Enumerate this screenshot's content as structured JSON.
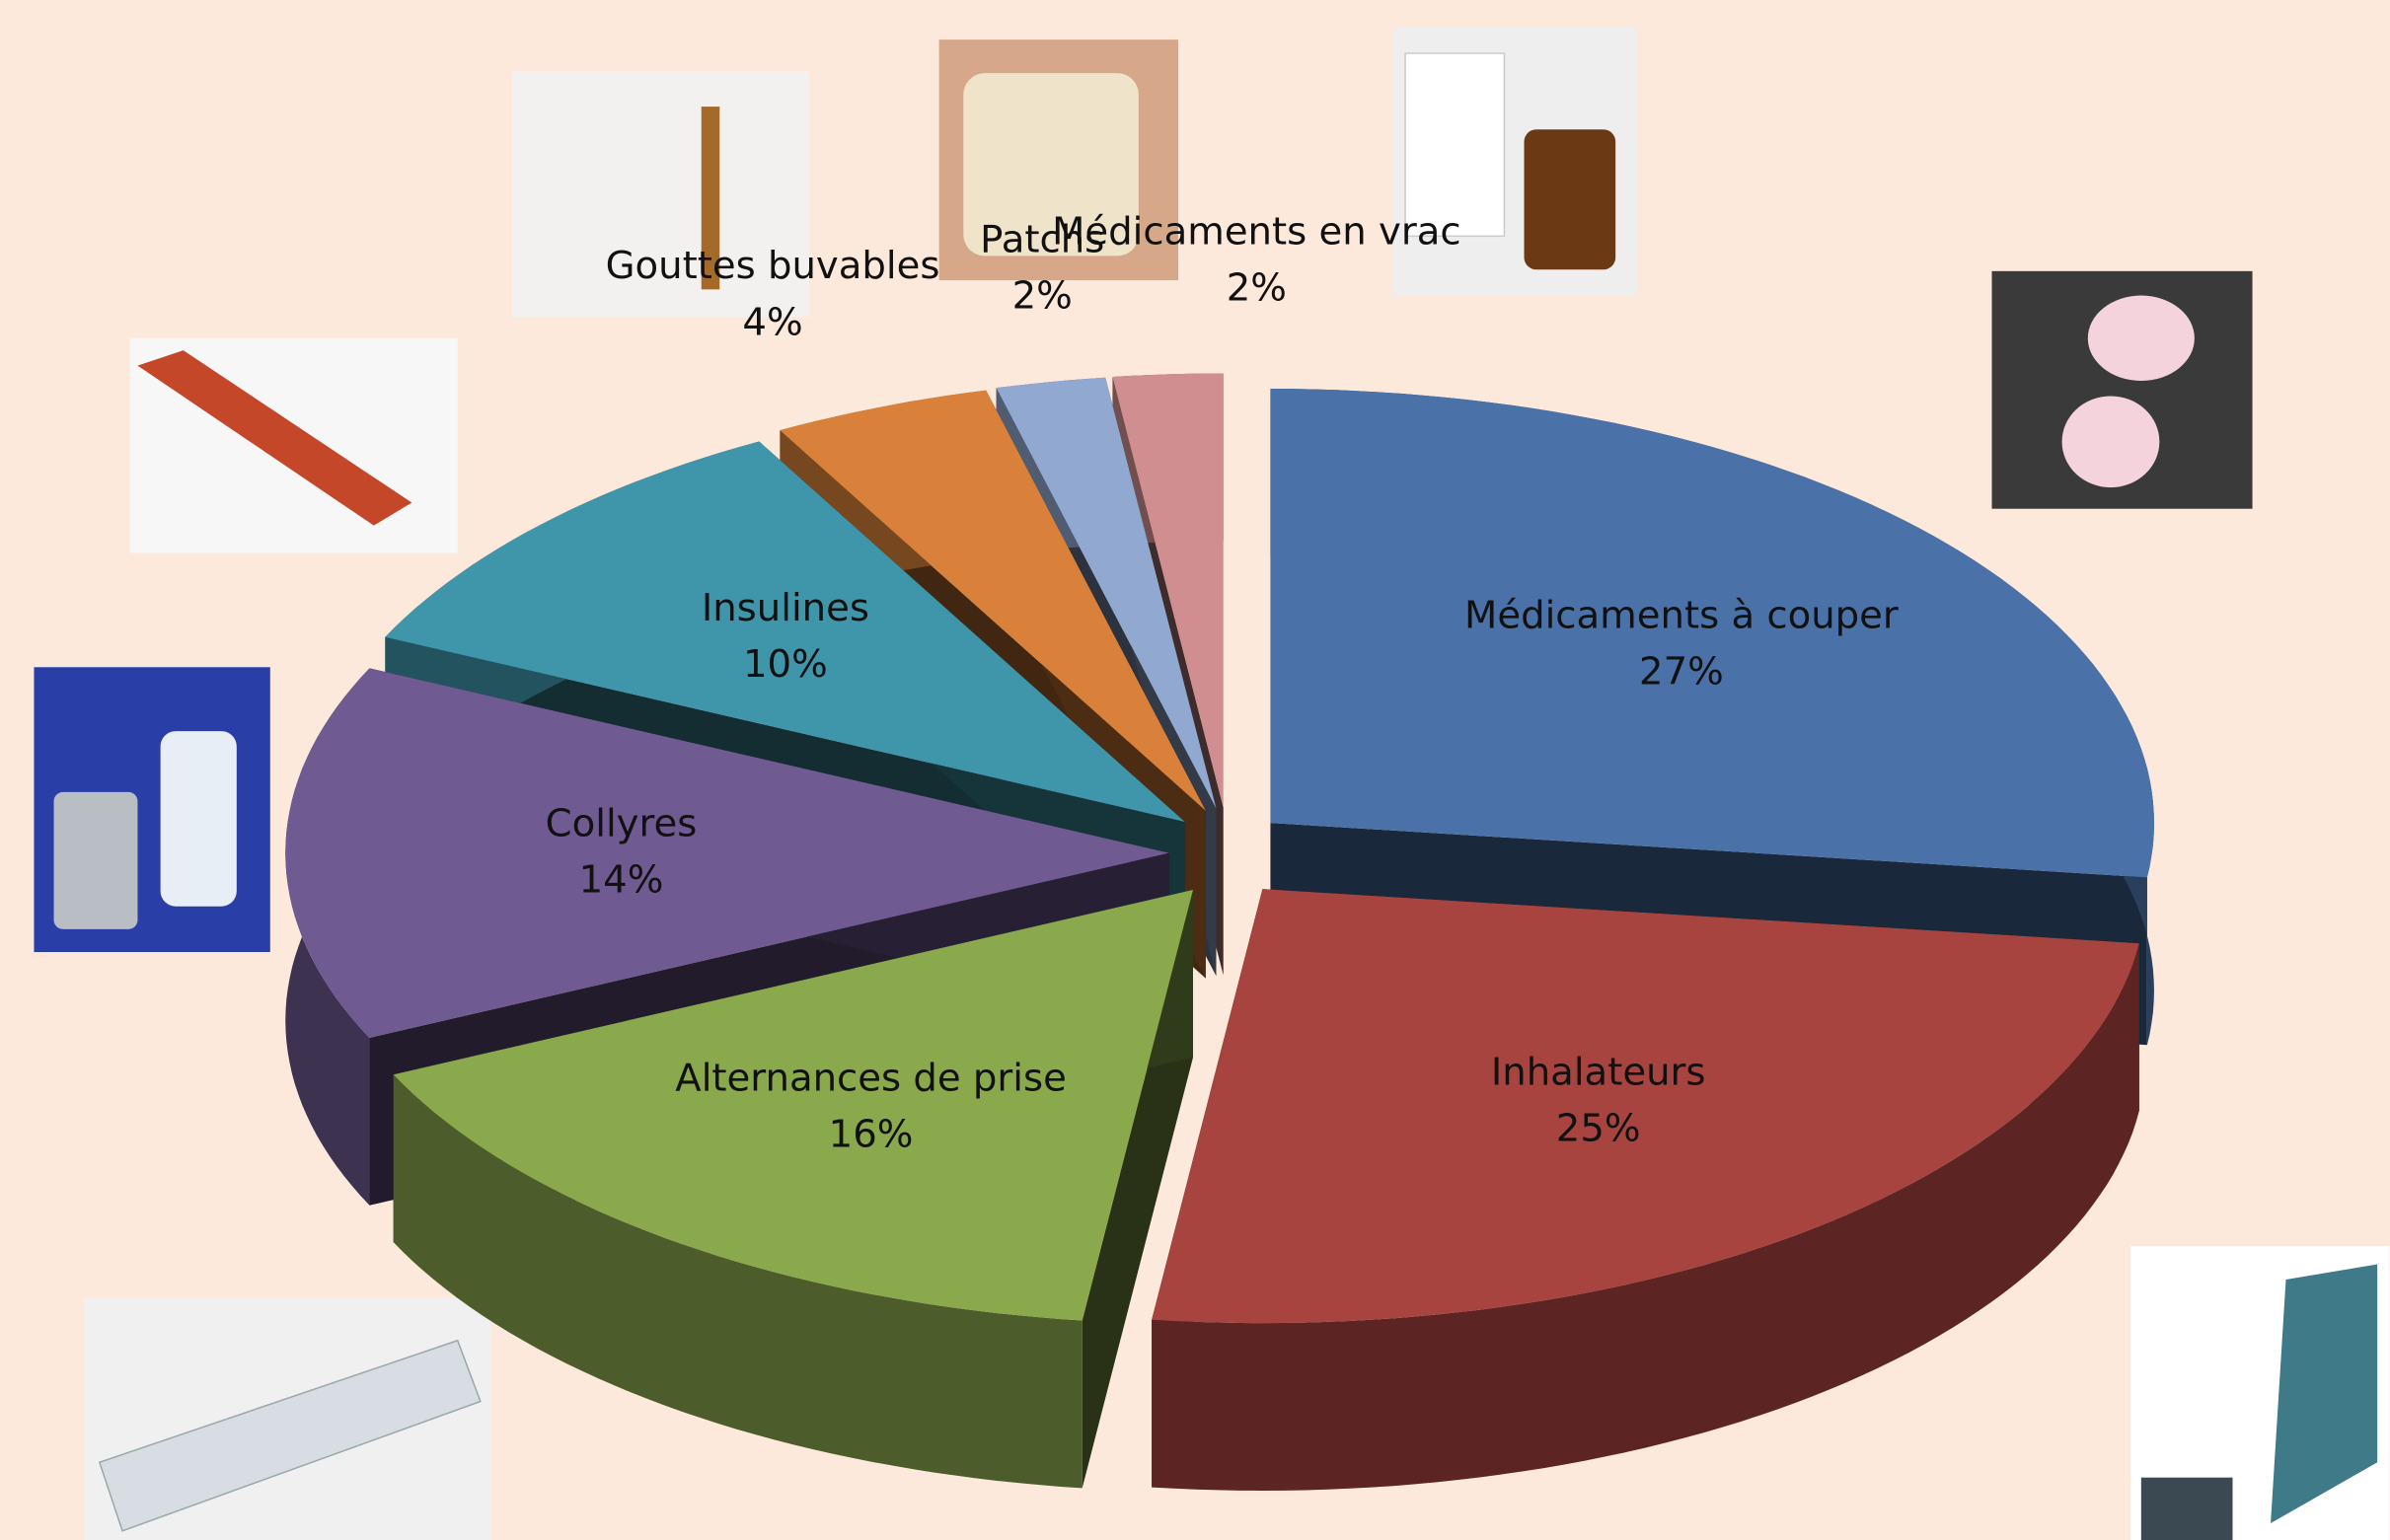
{
  "chart_data": {
    "type": "pie",
    "categories": [
      "Médicaments à couper",
      "Inhalateurs",
      "Alternances de prise",
      "Collyres",
      "Insulines",
      "Gouttes buvables",
      "Patchs",
      "Médicaments en vrac"
    ],
    "values": [
      27,
      25,
      16,
      14,
      10,
      4,
      2,
      2
    ],
    "value_labels": [
      "27%",
      "25%",
      "16%",
      "14%",
      "10%",
      "4%",
      "2%",
      "2%"
    ],
    "colors": [
      "#4a72a8",
      "#a84440",
      "#8aa84c",
      "#6f5a92",
      "#3f96aa",
      "#d9813a",
      "#91a8d0",
      "#d08e90"
    ]
  }
}
